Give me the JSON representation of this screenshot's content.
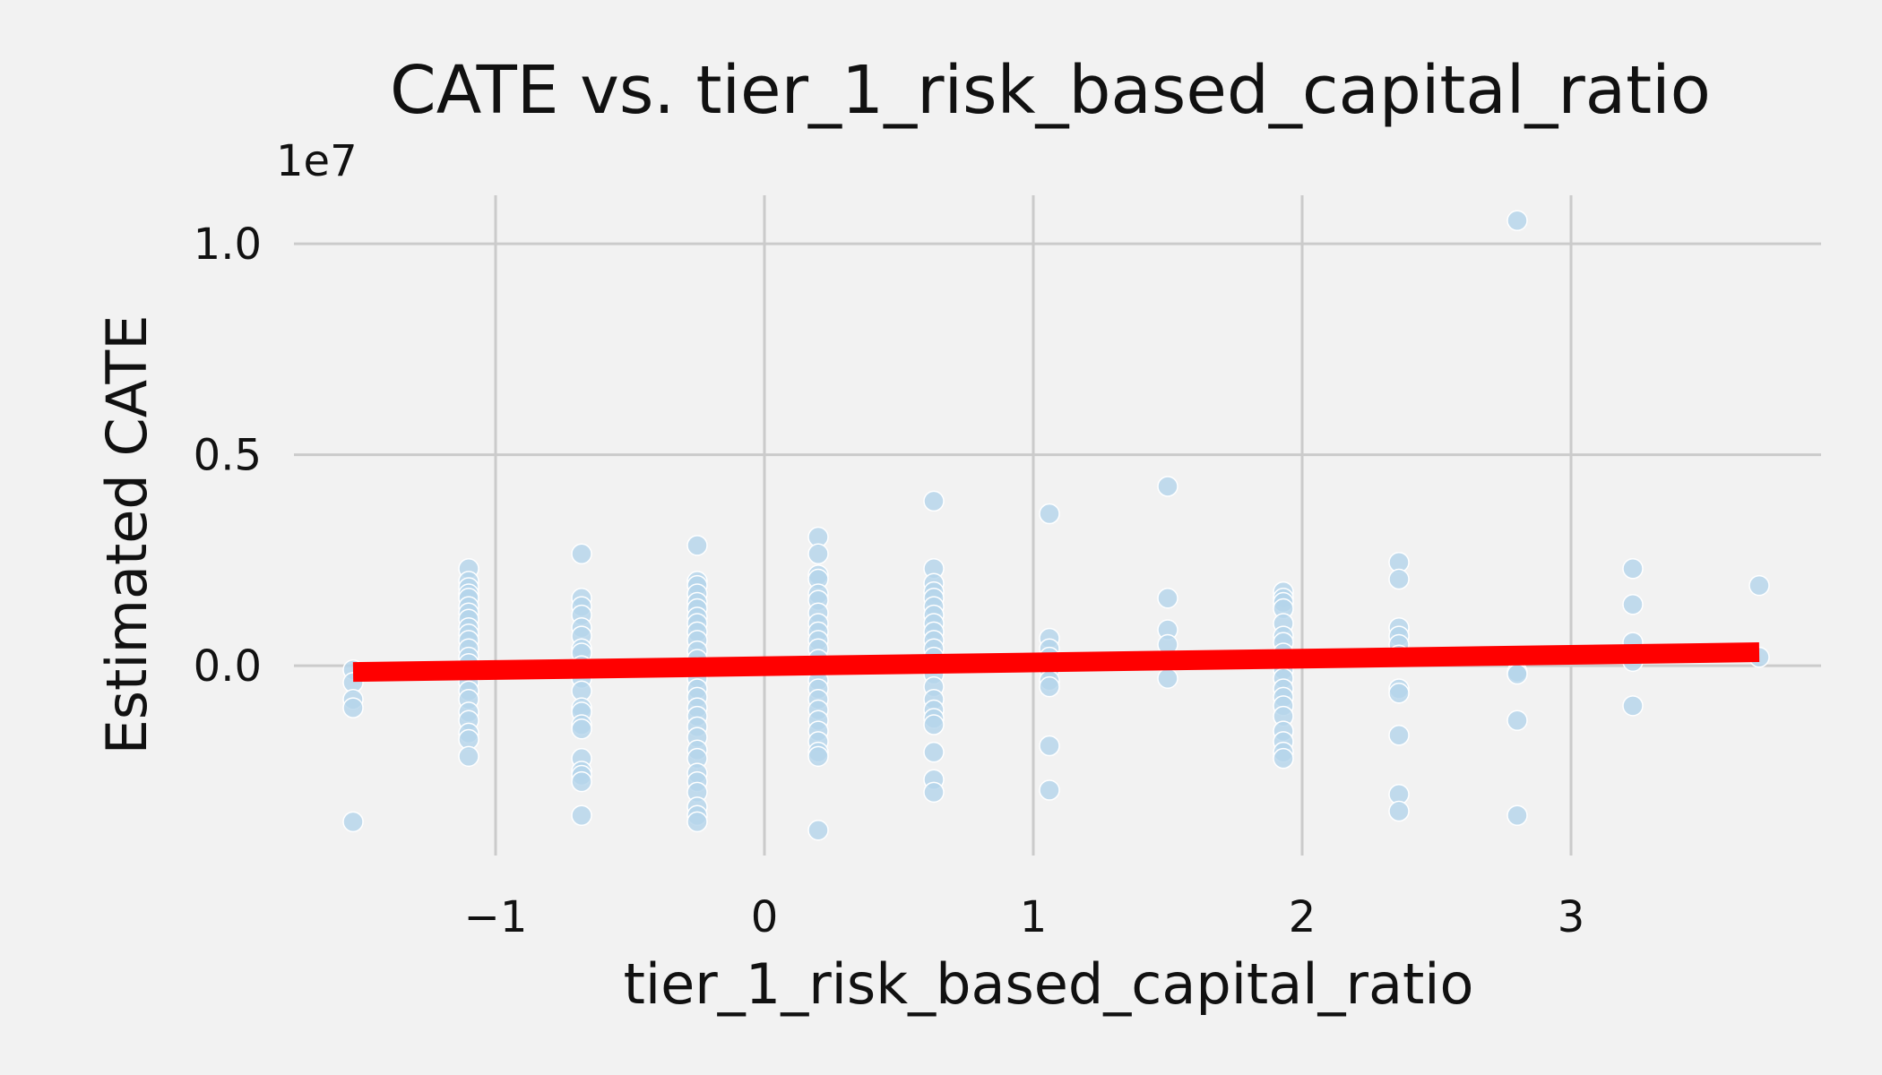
{
  "chart_data": {
    "type": "scatter",
    "title": "CATE vs. tier_1_risk_based_capital_ratio",
    "xlabel": "tier_1_risk_based_capital_ratio",
    "ylabel": "Estimated CATE",
    "y_offset_label": "1e7",
    "xlim": [
      -1.75,
      3.93
    ],
    "ylim": [
      -4.5,
      11.15
    ],
    "y_scale_note": "y values in units of 1e6",
    "grid": true,
    "x_ticks": [
      -1,
      0,
      1,
      2,
      3
    ],
    "x_tick_labels": [
      "−1",
      "0",
      "1",
      "2",
      "3"
    ],
    "y_ticks": [
      0,
      5,
      10
    ],
    "y_tick_labels": [
      "0.0",
      "0.5",
      "1.0"
    ],
    "colors": {
      "points": "#b4d4ea",
      "trend": "#ff0000",
      "background": "#f2f2f2",
      "grid": "#cbcbcb"
    },
    "trend_line": {
      "x": [
        -1.53,
        3.7
      ],
      "y": [
        -0.15,
        0.32
      ]
    },
    "points": [
      {
        "x": -1.53,
        "y": -0.1
      },
      {
        "x": -1.53,
        "y": -0.4
      },
      {
        "x": -1.53,
        "y": -0.8
      },
      {
        "x": -1.53,
        "y": -1.0
      },
      {
        "x": -1.53,
        "y": -3.7
      },
      {
        "x": -1.1,
        "y": 2.3
      },
      {
        "x": -1.1,
        "y": 2.0
      },
      {
        "x": -1.1,
        "y": 1.85
      },
      {
        "x": -1.1,
        "y": 1.7
      },
      {
        "x": -1.1,
        "y": 1.6
      },
      {
        "x": -1.1,
        "y": 1.4
      },
      {
        "x": -1.1,
        "y": 1.25
      },
      {
        "x": -1.1,
        "y": 1.1
      },
      {
        "x": -1.1,
        "y": 0.9
      },
      {
        "x": -1.1,
        "y": 0.75
      },
      {
        "x": -1.1,
        "y": 0.6
      },
      {
        "x": -1.1,
        "y": 0.4
      },
      {
        "x": -1.1,
        "y": 0.2
      },
      {
        "x": -1.1,
        "y": 0.05
      },
      {
        "x": -1.1,
        "y": -0.2
      },
      {
        "x": -1.1,
        "y": -0.4
      },
      {
        "x": -1.1,
        "y": -0.6
      },
      {
        "x": -1.1,
        "y": -0.8
      },
      {
        "x": -1.1,
        "y": -1.1
      },
      {
        "x": -1.1,
        "y": -1.3
      },
      {
        "x": -1.1,
        "y": -1.6
      },
      {
        "x": -1.1,
        "y": -1.75
      },
      {
        "x": -1.1,
        "y": -2.15
      },
      {
        "x": -0.68,
        "y": 2.65
      },
      {
        "x": -0.68,
        "y": 1.6
      },
      {
        "x": -0.68,
        "y": 1.4
      },
      {
        "x": -0.68,
        "y": 1.2
      },
      {
        "x": -0.68,
        "y": 0.9
      },
      {
        "x": -0.68,
        "y": 0.7
      },
      {
        "x": -0.68,
        "y": 0.4
      },
      {
        "x": -0.68,
        "y": 0.3
      },
      {
        "x": -0.68,
        "y": 0.0
      },
      {
        "x": -0.68,
        "y": -0.3
      },
      {
        "x": -0.68,
        "y": -0.6
      },
      {
        "x": -0.68,
        "y": -1.0
      },
      {
        "x": -0.68,
        "y": -1.1
      },
      {
        "x": -0.68,
        "y": -1.4
      },
      {
        "x": -0.68,
        "y": -1.5
      },
      {
        "x": -0.68,
        "y": -2.2
      },
      {
        "x": -0.68,
        "y": -2.5
      },
      {
        "x": -0.68,
        "y": -2.6
      },
      {
        "x": -0.68,
        "y": -2.75
      },
      {
        "x": -0.68,
        "y": -3.55
      },
      {
        "x": -0.25,
        "y": 2.85
      },
      {
        "x": -0.25,
        "y": 2.0
      },
      {
        "x": -0.25,
        "y": 1.9
      },
      {
        "x": -0.25,
        "y": 1.7
      },
      {
        "x": -0.25,
        "y": 1.5
      },
      {
        "x": -0.25,
        "y": 1.35
      },
      {
        "x": -0.25,
        "y": 1.15
      },
      {
        "x": -0.25,
        "y": 1.0
      },
      {
        "x": -0.25,
        "y": 0.8
      },
      {
        "x": -0.25,
        "y": 0.6
      },
      {
        "x": -0.25,
        "y": 0.35
      },
      {
        "x": -0.25,
        "y": 0.15
      },
      {
        "x": -0.25,
        "y": -0.05
      },
      {
        "x": -0.25,
        "y": -0.3
      },
      {
        "x": -0.25,
        "y": -0.55
      },
      {
        "x": -0.25,
        "y": -0.75
      },
      {
        "x": -0.25,
        "y": -1.0
      },
      {
        "x": -0.25,
        "y": -1.2
      },
      {
        "x": -0.25,
        "y": -1.45
      },
      {
        "x": -0.25,
        "y": -1.7
      },
      {
        "x": -0.25,
        "y": -2.0
      },
      {
        "x": -0.25,
        "y": -2.2
      },
      {
        "x": -0.25,
        "y": -2.55
      },
      {
        "x": -0.25,
        "y": -2.75
      },
      {
        "x": -0.25,
        "y": -3.0
      },
      {
        "x": -0.25,
        "y": -3.35
      },
      {
        "x": -0.25,
        "y": -3.55
      },
      {
        "x": -0.25,
        "y": -3.7
      },
      {
        "x": 0.2,
        "y": 3.05
      },
      {
        "x": 0.2,
        "y": 2.65
      },
      {
        "x": 0.2,
        "y": 2.15
      },
      {
        "x": 0.2,
        "y": 2.05
      },
      {
        "x": 0.2,
        "y": 1.7
      },
      {
        "x": 0.2,
        "y": 1.55
      },
      {
        "x": 0.2,
        "y": 1.25
      },
      {
        "x": 0.2,
        "y": 1.0
      },
      {
        "x": 0.2,
        "y": 0.8
      },
      {
        "x": 0.2,
        "y": 0.6
      },
      {
        "x": 0.2,
        "y": 0.4
      },
      {
        "x": 0.2,
        "y": 0.15
      },
      {
        "x": 0.2,
        "y": -0.1
      },
      {
        "x": 0.2,
        "y": -0.35
      },
      {
        "x": 0.2,
        "y": -0.55
      },
      {
        "x": 0.2,
        "y": -0.8
      },
      {
        "x": 0.2,
        "y": -1.05
      },
      {
        "x": 0.2,
        "y": -1.3
      },
      {
        "x": 0.2,
        "y": -1.55
      },
      {
        "x": 0.2,
        "y": -1.8
      },
      {
        "x": 0.2,
        "y": -2.05
      },
      {
        "x": 0.2,
        "y": -2.15
      },
      {
        "x": 0.2,
        "y": -3.9
      },
      {
        "x": 0.63,
        "y": 3.9
      },
      {
        "x": 0.63,
        "y": 2.3
      },
      {
        "x": 0.63,
        "y": 1.95
      },
      {
        "x": 0.63,
        "y": 1.75
      },
      {
        "x": 0.63,
        "y": 1.6
      },
      {
        "x": 0.63,
        "y": 1.4
      },
      {
        "x": 0.63,
        "y": 1.2
      },
      {
        "x": 0.63,
        "y": 1.0
      },
      {
        "x": 0.63,
        "y": 0.8
      },
      {
        "x": 0.63,
        "y": 0.6
      },
      {
        "x": 0.63,
        "y": 0.4
      },
      {
        "x": 0.63,
        "y": 0.2
      },
      {
        "x": 0.63,
        "y": 0.0
      },
      {
        "x": 0.63,
        "y": -0.2
      },
      {
        "x": 0.63,
        "y": -0.5
      },
      {
        "x": 0.63,
        "y": -0.8
      },
      {
        "x": 0.63,
        "y": -1.05
      },
      {
        "x": 0.63,
        "y": -1.25
      },
      {
        "x": 0.63,
        "y": -1.4
      },
      {
        "x": 0.63,
        "y": -2.05
      },
      {
        "x": 0.63,
        "y": -2.7
      },
      {
        "x": 0.63,
        "y": -3.0
      },
      {
        "x": 1.06,
        "y": 3.6
      },
      {
        "x": 1.06,
        "y": 0.65
      },
      {
        "x": 1.06,
        "y": 0.4
      },
      {
        "x": 1.06,
        "y": 0.2
      },
      {
        "x": 1.06,
        "y": -0.1
      },
      {
        "x": 1.06,
        "y": -0.35
      },
      {
        "x": 1.06,
        "y": -0.5
      },
      {
        "x": 1.06,
        "y": -1.9
      },
      {
        "x": 1.06,
        "y": -2.95
      },
      {
        "x": 1.5,
        "y": 4.25
      },
      {
        "x": 1.5,
        "y": 1.6
      },
      {
        "x": 1.5,
        "y": 0.85
      },
      {
        "x": 1.5,
        "y": 0.5
      },
      {
        "x": 1.5,
        "y": 0.1
      },
      {
        "x": 1.5,
        "y": -0.3
      },
      {
        "x": 1.93,
        "y": 1.75
      },
      {
        "x": 1.93,
        "y": 1.6
      },
      {
        "x": 1.93,
        "y": 1.5
      },
      {
        "x": 1.93,
        "y": 1.35
      },
      {
        "x": 1.93,
        "y": 1.0
      },
      {
        "x": 1.93,
        "y": 0.7
      },
      {
        "x": 1.93,
        "y": 0.55
      },
      {
        "x": 1.93,
        "y": 0.3
      },
      {
        "x": 1.93,
        "y": 0.1
      },
      {
        "x": 1.93,
        "y": -0.1
      },
      {
        "x": 1.93,
        "y": -0.3
      },
      {
        "x": 1.93,
        "y": -0.55
      },
      {
        "x": 1.93,
        "y": -0.75
      },
      {
        "x": 1.93,
        "y": -0.95
      },
      {
        "x": 1.93,
        "y": -1.2
      },
      {
        "x": 1.93,
        "y": -1.55
      },
      {
        "x": 1.93,
        "y": -1.8
      },
      {
        "x": 1.93,
        "y": -2.05
      },
      {
        "x": 1.93,
        "y": -2.2
      },
      {
        "x": 2.36,
        "y": 2.45
      },
      {
        "x": 2.36,
        "y": 2.05
      },
      {
        "x": 2.36,
        "y": 0.9
      },
      {
        "x": 2.36,
        "y": 0.7
      },
      {
        "x": 2.36,
        "y": 0.5
      },
      {
        "x": 2.36,
        "y": 0.25
      },
      {
        "x": 2.36,
        "y": -0.55
      },
      {
        "x": 2.36,
        "y": -0.65
      },
      {
        "x": 2.36,
        "y": -1.65
      },
      {
        "x": 2.36,
        "y": -3.05
      },
      {
        "x": 2.36,
        "y": -3.45
      },
      {
        "x": 2.8,
        "y": 10.55
      },
      {
        "x": 2.8,
        "y": -0.15
      },
      {
        "x": 2.8,
        "y": -0.2
      },
      {
        "x": 2.8,
        "y": -1.3
      },
      {
        "x": 2.8,
        "y": -3.55
      },
      {
        "x": 3.23,
        "y": 2.3
      },
      {
        "x": 3.23,
        "y": 1.45
      },
      {
        "x": 3.23,
        "y": 0.55
      },
      {
        "x": 3.23,
        "y": 0.1
      },
      {
        "x": 3.23,
        "y": -0.95
      },
      {
        "x": 3.7,
        "y": 1.9
      },
      {
        "x": 3.7,
        "y": 0.2
      }
    ]
  }
}
